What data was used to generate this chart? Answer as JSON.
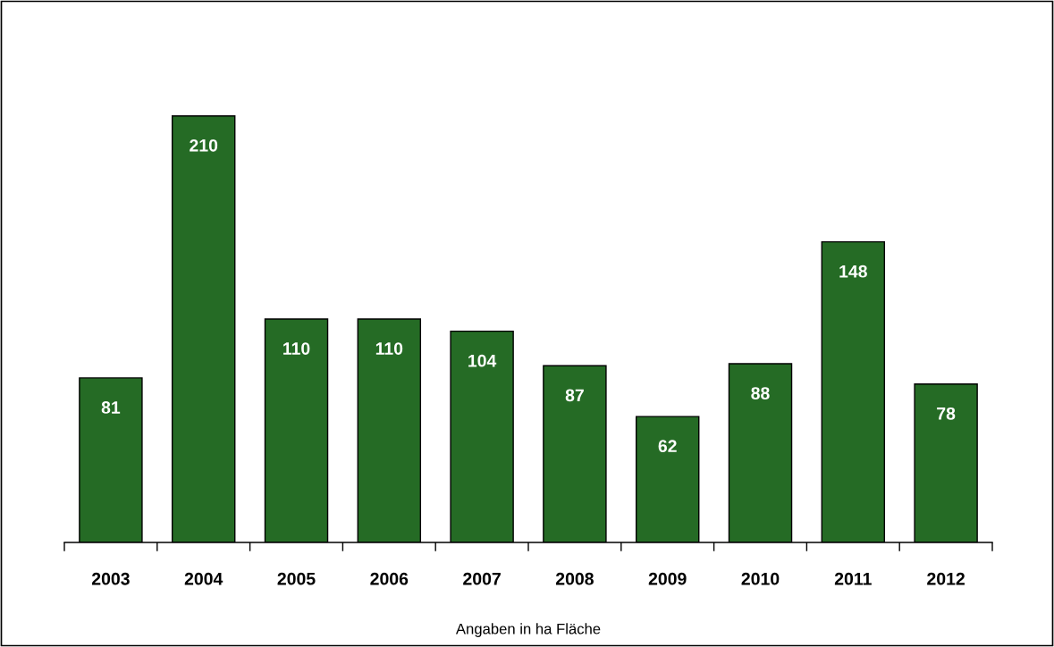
{
  "chart_data": {
    "type": "bar",
    "xlabel": "Angaben in ha Fläche",
    "categories": [
      "2003",
      "2004",
      "2005",
      "2006",
      "2007",
      "2008",
      "2009",
      "2010",
      "2011",
      "2012"
    ],
    "values": [
      81,
      210,
      110,
      110,
      104,
      87,
      62,
      88,
      148,
      78
    ],
    "color": "#256b25",
    "data_labels": true
  }
}
